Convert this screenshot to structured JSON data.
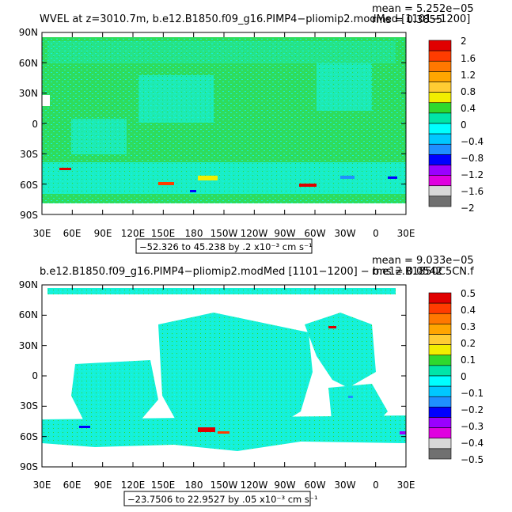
{
  "panels": [
    {
      "title": "WVEL at z=3010.7m, b.e12.B1850.f09_g16.PIMP4−pliomip2.modMed [1101−1200]",
      "mean_text": "mean = 5.252e−05",
      "rms_text": "rms = 0.3855",
      "range_text": "−52.326 to 45.238 by .2 x10⁻³ cm s⁻¹",
      "colorbar_labels": [
        "2",
        "1.6",
        "1.2",
        "0.8",
        "0.4",
        "0",
        "−0.4",
        "−0.8",
        "−1.2",
        "−1.6",
        "−2"
      ]
    },
    {
      "title": "b.e12.B1850.f09_g16.PIMP4−pliomip2.modMed [1101−1200] − b.e12.B1850C5CN.f",
      "mean_text": "mean = 9.033e−05",
      "rms_text": "rms = 0.0542",
      "range_text": "−23.7506 to 22.9527 by .05 x10⁻³ cm s⁻¹",
      "colorbar_labels": [
        "0.5",
        "0.4",
        "0.3",
        "0.2",
        "0.1",
        "0",
        "−0.1",
        "−0.2",
        "−0.3",
        "−0.4",
        "−0.5"
      ]
    }
  ],
  "axes": {
    "y_ticks": [
      "90N",
      "60N",
      "30N",
      "0",
      "30S",
      "60S",
      "90S"
    ],
    "x_ticks": [
      "30E",
      "60E",
      "90E",
      "120E",
      "150E",
      "180",
      "150W",
      "120W",
      "90W",
      "60W",
      "30W",
      "0",
      "30E"
    ]
  },
  "colors": {
    "scale": [
      "#e00000",
      "#ff3c00",
      "#ff7800",
      "#ffa500",
      "#ffcc33",
      "#f2ee00",
      "#2ed92e",
      "#00e5a8",
      "#00ffff",
      "#00c8ff",
      "#1f8fff",
      "#0000ff",
      "#9a00ff",
      "#e000e0",
      "#d8d8d8",
      "#707070"
    ],
    "ocean_top": "#2fdc5c",
    "cell_noise": "#16f0d8",
    "land": "#ffffff"
  },
  "chart_data": [
    {
      "type": "heatmap",
      "title": "WVEL at z=3010.7m, b.e12.B1850.f09_g16.PIMP4−pliomip2.modMed [1101−1200]",
      "x_range": [
        30,
        390
      ],
      "y_range": [
        -90,
        90
      ],
      "levels": [
        -2,
        -1.6,
        -1.2,
        -0.8,
        -0.4,
        0,
        0.4,
        0.8,
        1.2,
        1.6,
        2
      ],
      "mean": 5.252e-05,
      "rms": 0.3855,
      "data_min": -52.326,
      "data_max": 45.238,
      "interval": 0.2
    },
    {
      "type": "heatmap",
      "title": "b.e12.B1850.f09_g16.PIMP4−pliomip2.modMed [1101−1200] − b.e12.B1850C5CN.f",
      "x_range": [
        30,
        390
      ],
      "y_range": [
        -90,
        90
      ],
      "levels": [
        -0.5,
        -0.4,
        -0.3,
        -0.2,
        -0.1,
        0,
        0.1,
        0.2,
        0.3,
        0.4,
        0.5
      ],
      "mean": 9.033e-05,
      "rms": 0.0542,
      "data_min": -23.7506,
      "data_max": 22.9527,
      "interval": 0.05
    }
  ]
}
